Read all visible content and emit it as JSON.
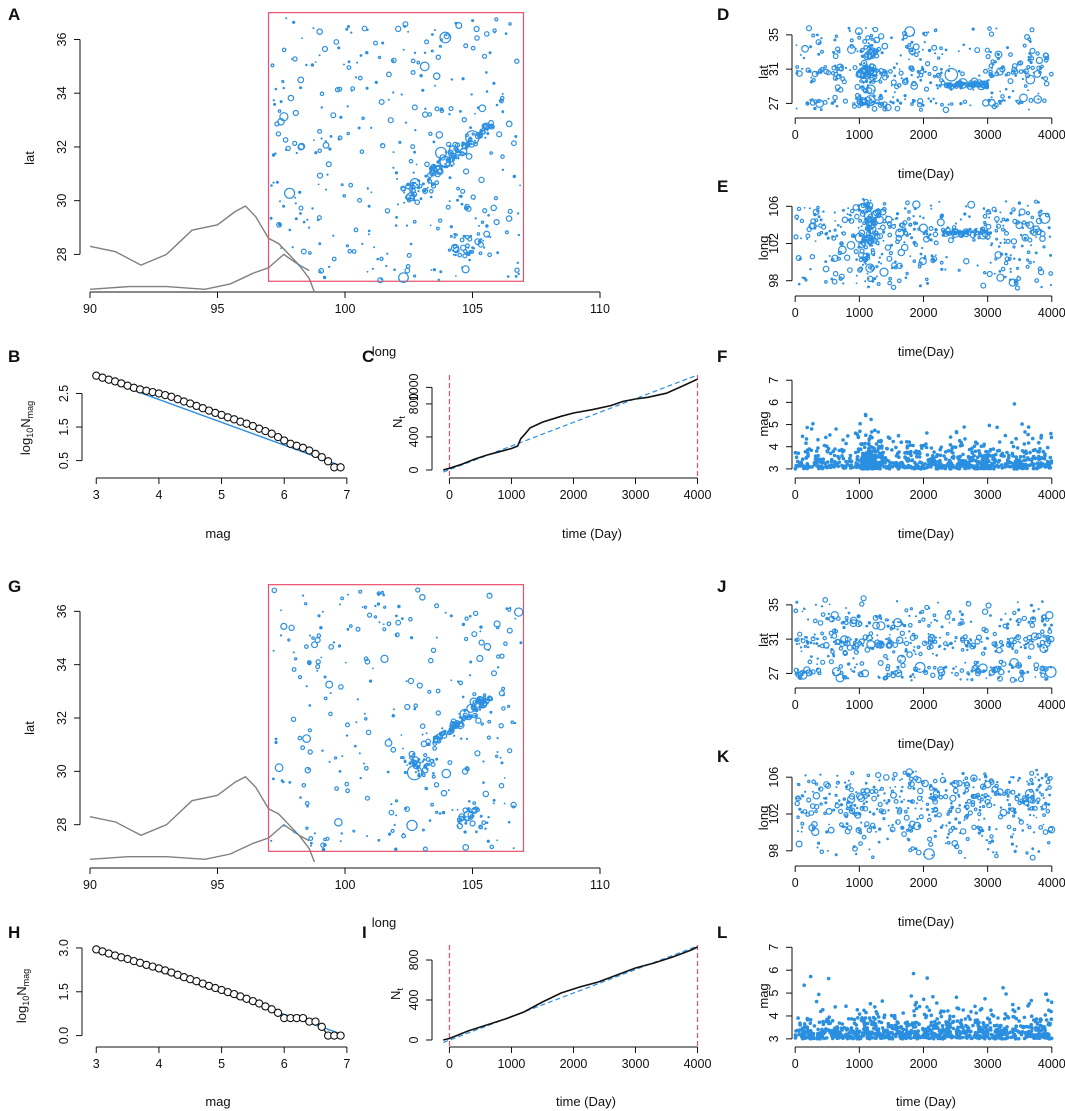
{
  "figure": {
    "colors": {
      "points": "#2b8fe0",
      "box": "#e8506a",
      "border": "#808080",
      "axis": "#111111",
      "fit": "#2b8fe0",
      "cum": "#111111",
      "vline": "#e8506a"
    }
  },
  "chart_data": [
    {
      "id": "A",
      "letter": "A",
      "type": "scatter",
      "title": "",
      "xlabel": "long",
      "ylabel": "lat",
      "xlim": [
        90,
        110
      ],
      "ylim": [
        26.6,
        36.8
      ],
      "xticks": [
        "90",
        "95",
        "100",
        "105",
        "110"
      ],
      "yticks": [
        "28",
        "30",
        "32",
        "34",
        "36"
      ],
      "study_region": {
        "long": [
          97,
          107
        ],
        "lat": [
          27,
          37
        ]
      },
      "seed": 11,
      "n_points": 520
    },
    {
      "id": "B",
      "letter": "B",
      "type": "line",
      "title": "",
      "xlabel": "mag",
      "ylabel": "log10Nmag",
      "xlim": [
        2.9,
        7.05
      ],
      "ylim": [
        0.22,
        3.05
      ],
      "xticks": [
        "3",
        "4",
        "5",
        "6",
        "7"
      ],
      "yticks": [
        "0.5",
        "1.5",
        "2.5"
      ],
      "fit_line": {
        "intercept_at_3": 3.0,
        "slope": -0.68
      },
      "mag_values": [
        3.0,
        3.1,
        3.2,
        3.3,
        3.4,
        3.5,
        3.6,
        3.7,
        3.8,
        3.9,
        4.0,
        4.1,
        4.2,
        4.3,
        4.4,
        4.5,
        4.6,
        4.7,
        4.8,
        4.9,
        5.0,
        5.1,
        5.2,
        5.3,
        5.4,
        5.5,
        5.6,
        5.7,
        5.8,
        5.9,
        6.0,
        6.1,
        6.2,
        6.3,
        6.4,
        6.5,
        6.6,
        6.7,
        6.8,
        6.9
      ],
      "log_values": [
        3.03,
        2.97,
        2.91,
        2.86,
        2.8,
        2.73,
        2.67,
        2.62,
        2.58,
        2.54,
        2.5,
        2.45,
        2.4,
        2.33,
        2.26,
        2.2,
        2.13,
        2.06,
        1.99,
        1.92,
        1.86,
        1.79,
        1.73,
        1.66,
        1.6,
        1.53,
        1.45,
        1.38,
        1.3,
        1.2,
        1.1,
        1.0,
        0.94,
        0.88,
        0.8,
        0.7,
        0.6,
        0.48,
        0.3,
        0.3
      ]
    },
    {
      "id": "C",
      "letter": "C",
      "type": "line",
      "title": "",
      "xlabel": "time  (Day)",
      "ylabel": "Nt",
      "xlim": [
        -120,
        4040
      ],
      "ylim": [
        0,
        1150
      ],
      "xticks": [
        "0",
        "1000",
        "2000",
        "3000",
        "4000"
      ],
      "yticks": [
        "0",
        "400",
        "800"
      ],
      "yticks2": [
        "1000"
      ],
      "vlines": [
        0,
        4000
      ],
      "fit_line": {
        "x": [
          0,
          4000
        ],
        "y": [
          0,
          1150
        ]
      },
      "cumulative": {
        "x": [
          -100,
          0,
          200,
          400,
          600,
          800,
          1000,
          1100,
          1150,
          1200,
          1300,
          1500,
          1800,
          2000,
          2300,
          2600,
          2800,
          3000,
          3200,
          3500,
          3800,
          4000
        ],
        "y": [
          0,
          20,
          70,
          130,
          180,
          220,
          260,
          290,
          380,
          420,
          510,
          580,
          650,
          690,
          730,
          780,
          830,
          860,
          880,
          930,
          1030,
          1100
        ]
      }
    },
    {
      "id": "D",
      "letter": "D",
      "type": "scatter",
      "title": "",
      "xlabel": "time(Day)",
      "ylabel": "lat",
      "xlim": [
        -50,
        4050
      ],
      "ylim": [
        26,
        36.5
      ],
      "xticks": [
        "0",
        "1000",
        "2000",
        "3000",
        "4000"
      ],
      "yticks": [
        "27",
        "31",
        "35"
      ],
      "seed": 21,
      "n_points": 560
    },
    {
      "id": "E",
      "letter": "E",
      "type": "scatter",
      "title": "",
      "xlabel": "time(Day)",
      "ylabel": "long",
      "xlim": [
        -50,
        4050
      ],
      "ylim": [
        97,
        107
      ],
      "xticks": [
        "0",
        "1000",
        "2000",
        "3000",
        "4000"
      ],
      "yticks": [
        "98",
        "102",
        "106"
      ],
      "seed": 31,
      "n_points": 560
    },
    {
      "id": "F",
      "letter": "F",
      "type": "scatter",
      "title": "",
      "xlabel": "time(Day)",
      "ylabel": "mag",
      "xlim": [
        -50,
        4050
      ],
      "ylim": [
        2.95,
        7.1
      ],
      "xticks": [
        "0",
        "1000",
        "2000",
        "3000",
        "4000"
      ],
      "yticks": [
        "3",
        "4",
        "5",
        "6",
        "7"
      ],
      "seed": 41,
      "n_points": 900
    },
    {
      "id": "G",
      "letter": "G",
      "type": "scatter",
      "title": "",
      "xlabel": "long",
      "ylabel": "lat",
      "xlim": [
        90,
        110
      ],
      "ylim": [
        26.6,
        36.8
      ],
      "xticks": [
        "90",
        "95",
        "100",
        "105",
        "110"
      ],
      "yticks": [
        "28",
        "30",
        "32",
        "34",
        "36"
      ],
      "study_region": {
        "long": [
          97,
          107
        ],
        "lat": [
          27,
          37
        ]
      },
      "seed": 51,
      "n_points": 480
    },
    {
      "id": "H",
      "letter": "H",
      "type": "line",
      "title": "",
      "xlabel": "mag",
      "ylabel": "log10Nmag",
      "xlim": [
        2.9,
        7.05
      ],
      "ylim": [
        -0.15,
        3.1
      ],
      "xticks": [
        "3",
        "4",
        "5",
        "6",
        "7"
      ],
      "yticks": [
        "0.0",
        "1.5",
        "3.0"
      ],
      "fit_line": {
        "intercept_at_3": 2.95,
        "slope": -0.74
      },
      "mag_values": [
        3.0,
        3.1,
        3.2,
        3.3,
        3.4,
        3.5,
        3.6,
        3.7,
        3.8,
        3.9,
        4.0,
        4.1,
        4.2,
        4.3,
        4.4,
        4.5,
        4.6,
        4.7,
        4.8,
        4.9,
        5.0,
        5.1,
        5.2,
        5.3,
        5.4,
        5.5,
        5.6,
        5.7,
        5.8,
        5.9,
        6.0,
        6.1,
        6.2,
        6.3,
        6.4,
        6.5,
        6.6,
        6.7,
        6.8,
        6.9
      ],
      "log_values": [
        2.95,
        2.88,
        2.81,
        2.74,
        2.68,
        2.62,
        2.55,
        2.49,
        2.42,
        2.36,
        2.3,
        2.23,
        2.16,
        2.08,
        2.0,
        1.93,
        1.86,
        1.78,
        1.7,
        1.63,
        1.56,
        1.49,
        1.42,
        1.34,
        1.26,
        1.18,
        1.1,
        1.0,
        0.9,
        0.78,
        0.6,
        0.6,
        0.6,
        0.6,
        0.48,
        0.48,
        0.3,
        0.0,
        0.0,
        0.0
      ]
    },
    {
      "id": "I",
      "letter": "I",
      "type": "line",
      "title": "",
      "xlabel": "time (Day)",
      "ylabel": "Nt",
      "xlim": [
        -120,
        4040
      ],
      "ylim": [
        0,
        950
      ],
      "xticks": [
        "0",
        "1000",
        "2000",
        "3000",
        "4000"
      ],
      "yticks": [
        "0",
        "400",
        "800"
      ],
      "vlines": [
        0,
        4000
      ],
      "fit_line": {
        "x": [
          0,
          4000
        ],
        "y": [
          0,
          940
        ]
      },
      "cumulative": {
        "x": [
          -100,
          0,
          300,
          600,
          900,
          1200,
          1500,
          1800,
          2100,
          2400,
          2700,
          3000,
          3300,
          3600,
          3900,
          4000
        ],
        "y": [
          0,
          15,
          90,
          150,
          210,
          280,
          380,
          470,
          530,
          580,
          650,
          720,
          770,
          830,
          900,
          930
        ]
      }
    },
    {
      "id": "J",
      "letter": "J",
      "type": "scatter",
      "title": "",
      "xlabel": "time(Day)",
      "ylabel": "lat",
      "xlim": [
        -50,
        4050
      ],
      "ylim": [
        26,
        36.5
      ],
      "xticks": [
        "0",
        "1000",
        "2000",
        "3000",
        "4000"
      ],
      "yticks": [
        "27",
        "31",
        "35"
      ],
      "seed": 61,
      "n_points": 520
    },
    {
      "id": "K",
      "letter": "K",
      "type": "scatter",
      "title": "",
      "xlabel": "time(Day)",
      "ylabel": "long",
      "xlim": [
        -50,
        4050
      ],
      "ylim": [
        97,
        107
      ],
      "xticks": [
        "0",
        "1000",
        "2000",
        "3000",
        "4000"
      ],
      "yticks": [
        "98",
        "102",
        "106"
      ],
      "seed": 71,
      "n_points": 520
    },
    {
      "id": "L",
      "letter": "L",
      "type": "scatter",
      "title": "",
      "xlabel": "time (Day)",
      "ylabel": "mag",
      "xlim": [
        -50,
        4050
      ],
      "ylim": [
        2.95,
        7.1
      ],
      "xticks": [
        "0",
        "1000",
        "2000",
        "3000",
        "4000"
      ],
      "yticks": [
        "3",
        "4",
        "5",
        "6",
        "7"
      ],
      "seed": 81,
      "n_points": 850
    }
  ]
}
